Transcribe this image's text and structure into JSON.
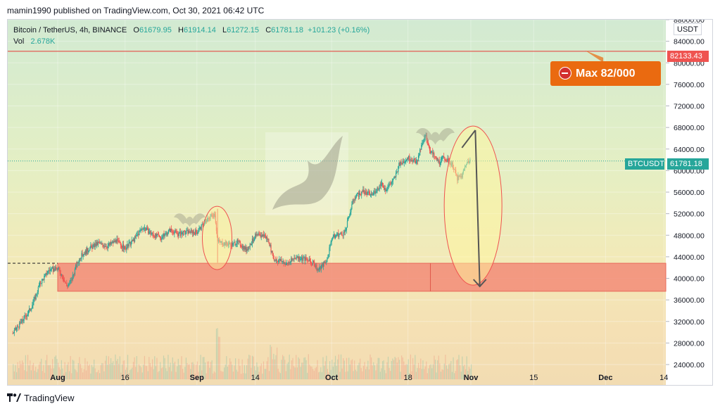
{
  "header": {
    "published": "mamin1990 published on TradingView.com, Oct 30, 2021 06:42 UTC"
  },
  "legend": {
    "symbol": "Bitcoin / TetherUS, 4h, BINANCE",
    "o_label": "O",
    "o": "61679.95",
    "h_label": "H",
    "h": "61914.14",
    "l_label": "L",
    "l": "61272.15",
    "c_label": "C",
    "c": "61781.18",
    "change": "+101.23 (+0.16%)",
    "vol_label": "Vol",
    "vol": "2.678K"
  },
  "axis": {
    "currency": "USDT"
  },
  "tags": {
    "max_price": "82133.43",
    "symbol": "BTCUSDT",
    "last_price": "61781.18"
  },
  "annotation": {
    "callout": "Max 82/000"
  },
  "footer": {
    "brand": "TradingView"
  },
  "colors": {
    "up": "#26a69a",
    "down": "#ef5350",
    "zone": "#f28b78",
    "callout": "#ea6a10",
    "tag_red": "#ef5350",
    "tag_teal": "#26a69a"
  },
  "chart_data": {
    "type": "candlestick",
    "symbol": "BTCUSDT",
    "interval": "4h",
    "y_ticks": [
      24000,
      28000,
      32000,
      36000,
      40000,
      44000,
      48000,
      52000,
      56000,
      60000,
      64000,
      68000,
      72000,
      76000,
      80000,
      84000,
      88000
    ],
    "y_tick_labels": [
      "24000.00",
      "28000.00",
      "32000.00",
      "36000.00",
      "40000.00",
      "44000.00",
      "48000.00",
      "52000.00",
      "56000.00",
      "60000.00",
      "64000.00",
      "68000.00",
      "72000.00",
      "76000.00",
      "80000.00",
      "84000.00",
      "88000.00"
    ],
    "ylim": [
      23500,
      88500
    ],
    "x_ticks": [
      {
        "label": "Aug",
        "day": 0,
        "bold": true
      },
      {
        "label": "16",
        "day": 15,
        "bold": false
      },
      {
        "label": "Sep",
        "day": 31,
        "bold": true
      },
      {
        "label": "14",
        "day": 44,
        "bold": false
      },
      {
        "label": "Oct",
        "day": 61,
        "bold": true
      },
      {
        "label": "18",
        "day": 78,
        "bold": false
      },
      {
        "label": "Nov",
        "day": 92,
        "bold": true
      },
      {
        "label": "15",
        "day": 106,
        "bold": false
      },
      {
        "label": "Dec",
        "day": 122,
        "bold": true
      },
      {
        "label": "14",
        "day": 135,
        "bold": false
      }
    ],
    "price_path": [
      [
        -10,
        29800
      ],
      [
        -8,
        32000
      ],
      [
        -6,
        34500
      ],
      [
        -5,
        36500
      ],
      [
        -4,
        39000
      ],
      [
        -2,
        41500
      ],
      [
        0,
        41800
      ],
      [
        1,
        40500
      ],
      [
        2,
        38600
      ],
      [
        3,
        39500
      ],
      [
        4,
        42000
      ],
      [
        5,
        44000
      ],
      [
        7,
        45500
      ],
      [
        9,
        46500
      ],
      [
        11,
        46000
      ],
      [
        13,
        47000
      ],
      [
        15,
        45500
      ],
      [
        17,
        47200
      ],
      [
        19,
        49500
      ],
      [
        21,
        48200
      ],
      [
        23,
        47500
      ],
      [
        25,
        49000
      ],
      [
        27,
        48200
      ],
      [
        29,
        48600
      ],
      [
        31,
        48600
      ],
      [
        33,
        50500
      ],
      [
        34,
        51500
      ],
      [
        35,
        52000
      ],
      [
        35.6,
        46800
      ],
      [
        37,
        46500
      ],
      [
        39,
        46300
      ],
      [
        40,
        46800
      ],
      [
        42,
        45300
      ],
      [
        44,
        47800
      ],
      [
        46,
        48000
      ],
      [
        47,
        47000
      ],
      [
        48,
        43600
      ],
      [
        50,
        43200
      ],
      [
        51,
        42600
      ],
      [
        53,
        44000
      ],
      [
        55,
        43600
      ],
      [
        57,
        42800
      ],
      [
        58,
        41500
      ],
      [
        60,
        43500
      ],
      [
        61,
        47500
      ],
      [
        62,
        48000
      ],
      [
        64,
        48500
      ],
      [
        65,
        52000
      ],
      [
        66,
        55000
      ],
      [
        68,
        56000
      ],
      [
        70,
        55500
      ],
      [
        72,
        57500
      ],
      [
        73,
        56500
      ],
      [
        75,
        58500
      ],
      [
        76,
        61000
      ],
      [
        78,
        62500
      ],
      [
        80,
        61500
      ],
      [
        81,
        64500
      ],
      [
        82,
        66500
      ],
      [
        83,
        63500
      ],
      [
        84,
        62500
      ],
      [
        85,
        61500
      ],
      [
        86,
        62500
      ],
      [
        88,
        61000
      ],
      [
        89,
        58500
      ],
      [
        90,
        59000
      ],
      [
        91,
        61500
      ],
      [
        92,
        61800
      ]
    ],
    "last_close": 61781.18,
    "max_line": 82133.43,
    "support_zone": {
      "from": 37600,
      "to": 42800,
      "day_start": 0
    },
    "projection": {
      "from_day": 93,
      "from_price": 67500,
      "to_day": 94,
      "to_price": 38500
    },
    "volume_note": "volume histogram along bottom"
  }
}
